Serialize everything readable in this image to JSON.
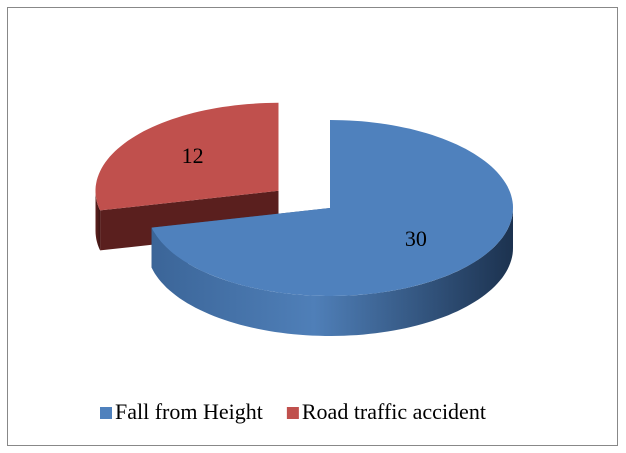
{
  "chart_data": {
    "type": "pie3d",
    "categories": [
      "Fall from Height",
      "Road traffic accident"
    ],
    "values": [
      30,
      12
    ],
    "colors": [
      "#4f81bd",
      "#c0504d"
    ],
    "legend": "bottom"
  }
}
